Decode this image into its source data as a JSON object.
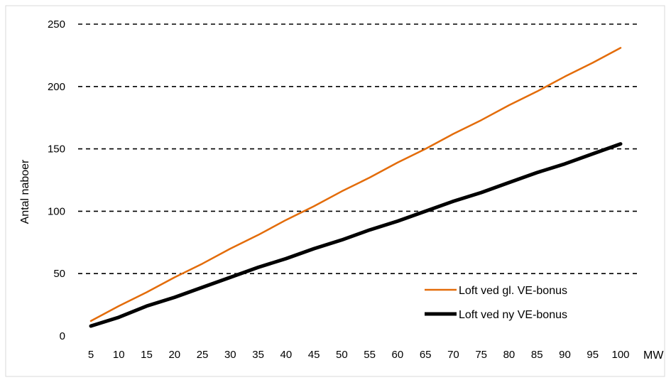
{
  "chart_data": {
    "type": "line",
    "title": "",
    "xlabel": "MW",
    "ylabel": "Antal naboer",
    "x": [
      5,
      10,
      15,
      20,
      25,
      30,
      35,
      40,
      45,
      50,
      55,
      60,
      65,
      70,
      75,
      80,
      85,
      90,
      95,
      100
    ],
    "xticks": [
      "5",
      "10",
      "15",
      "20",
      "25",
      "30",
      "35",
      "40",
      "45",
      "50",
      "55",
      "60",
      "65",
      "70",
      "75",
      "80",
      "85",
      "90",
      "95",
      "100"
    ],
    "ylim": [
      0,
      250
    ],
    "yticks": [
      "0",
      "50",
      "100",
      "150",
      "200",
      "250"
    ],
    "grid": true,
    "legend_position": "bottom-right",
    "series": [
      {
        "name": "Loft ved gl. VE-bonus",
        "color": "#e36c0a",
        "values": [
          12,
          24,
          35,
          47,
          58,
          70,
          81,
          93,
          104,
          116,
          127,
          139,
          150,
          162,
          173,
          185,
          196,
          208,
          219,
          231
        ]
      },
      {
        "name": "Loft ved ny VE-bonus",
        "color": "#000000",
        "values": [
          8,
          15,
          24,
          31,
          39,
          47,
          55,
          62,
          70,
          77,
          85,
          92,
          100,
          108,
          115,
          123,
          131,
          138,
          146,
          154
        ]
      }
    ]
  }
}
